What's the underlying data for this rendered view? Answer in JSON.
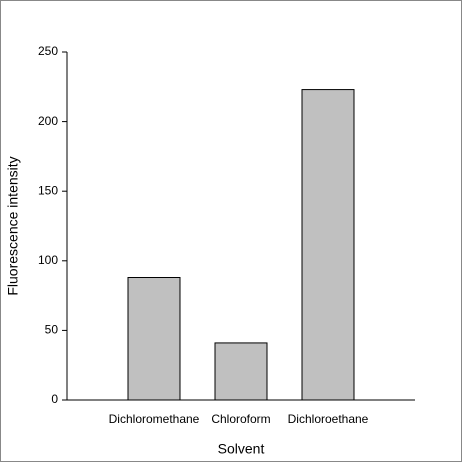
{
  "chart_data": {
    "type": "bar",
    "x_label": "Solvent",
    "y_label": "Fluorescence intensity",
    "categories": [
      "Dichloromethane",
      "Chloroform",
      "Dichloroethane"
    ],
    "values": [
      88,
      41,
      223
    ],
    "color": "#c0c0c0",
    "ylim": [
      0,
      250
    ],
    "yticks": [
      0,
      50,
      100,
      150,
      200,
      250
    ]
  }
}
